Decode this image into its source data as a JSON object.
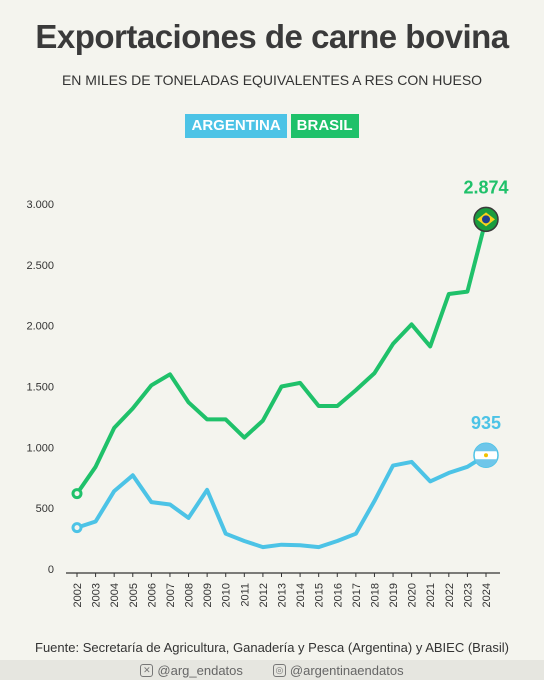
{
  "title": "Exportaciones de carne bovina",
  "subtitle": "EN MILES DE TONELADAS EQUIVALENTES A RES CON HUESO",
  "source": "Fuente: Secretaría de Agricultura, Ganadería y Pesca (Argentina) y ABIEC (Brasil)",
  "footer": {
    "x_handle": "@arg_endatos",
    "instagram_handle": "@argentinaendatos",
    "x_icon": "x-logo-icon",
    "instagram_icon": "instagram-icon"
  },
  "colors": {
    "argentina": "#4cc3e6",
    "brasil": "#1fc16a",
    "axis": "#333333"
  },
  "chart_data": {
    "type": "line",
    "title": "Exportaciones de carne bovina",
    "subtitle": "EN MILES DE TONELADAS EQUIVALENTES A RES CON HUESO",
    "xlabel": "",
    "ylabel": "",
    "ylim": [
      0,
      3000
    ],
    "yticks": [
      0,
      500,
      1000,
      1500,
      2000,
      2500,
      3000
    ],
    "ytick_labels": [
      "0",
      "500",
      "1.000",
      "1.500",
      "2.000",
      "2.500",
      "3.000"
    ],
    "grid": false,
    "legend_position": "top-center",
    "x": [
      "2002",
      "2003",
      "2004",
      "2005",
      "2006",
      "2007",
      "2008",
      "2009",
      "2010",
      "2011",
      "2012",
      "2013",
      "2014",
      "2015",
      "2016",
      "2017",
      "2018",
      "2019",
      "2020",
      "2021",
      "2022",
      "2023",
      "2024"
    ],
    "series": [
      {
        "name": "ARGENTINA",
        "color": "#4cc3e6",
        "values": [
          340,
          390,
          640,
          770,
          550,
          530,
          420,
          650,
          290,
          230,
          180,
          200,
          195,
          180,
          230,
          290,
          560,
          850,
          880,
          720,
          790,
          840,
          935
        ],
        "end_label": "935"
      },
      {
        "name": "BRASIL",
        "color": "#1fc16a",
        "values": [
          620,
          840,
          1160,
          1320,
          1510,
          1600,
          1370,
          1230,
          1230,
          1080,
          1220,
          1500,
          1530,
          1340,
          1340,
          1470,
          1610,
          1850,
          2010,
          1830,
          2260,
          2280,
          2874
        ],
        "end_label": "2.874"
      }
    ]
  }
}
